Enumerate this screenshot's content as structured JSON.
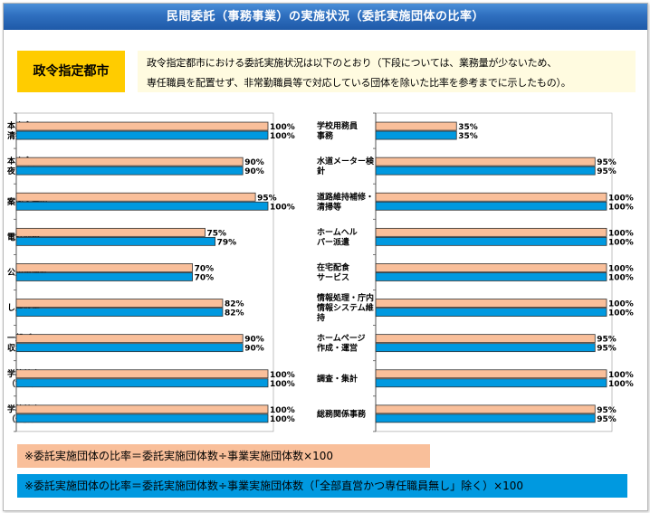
{
  "header": {
    "title": "民間委託（事務事業）の実施状況（委託実施団体の比率）"
  },
  "badge": {
    "label": "政令指定都市"
  },
  "description": {
    "line1": "政令指定都市における委託実施状況は以下のとおり（下段については、業務量が少ないため、",
    "line2": "専任職員を配置せず、非常勤職員等で対応している団体を除いた比率を参考までに示したもの）。"
  },
  "notes": {
    "note1": "※委託実施団体の比率＝委託実施団体数÷事業実施団体数×100",
    "note2": "※委託実施団体の比率＝委託実施団体数÷事業実施団体数（「全部直営かつ専任職員無し」除く）×100"
  },
  "colors": {
    "series1": "#f9bf9a",
    "series2": "#0099e0",
    "border": "#333333"
  },
  "chart_data": [
    {
      "type": "bar",
      "orientation": "horizontal",
      "xlim": [
        0,
        100
      ],
      "categories": [
        [
          "本庁舎の",
          "清掃"
        ],
        [
          "本庁舎の",
          "夜間警備"
        ],
        [
          "案内・受付"
        ],
        [
          "電話交換"
        ],
        [
          "公用車運転"
        ],
        [
          "し尿収集"
        ],
        [
          "一般ごみ",
          "収集"
        ],
        [
          "学校給食",
          "（調理）"
        ],
        [
          "学校給食",
          "（運搬）"
        ]
      ],
      "series": [
        {
          "values": [
            100,
            90,
            95,
            75,
            70,
            82,
            90,
            100,
            100
          ]
        },
        {
          "values": [
            100,
            90,
            100,
            79,
            70,
            82,
            90,
            100,
            100
          ]
        }
      ]
    },
    {
      "type": "bar",
      "orientation": "horizontal",
      "xlim": [
        0,
        100
      ],
      "categories": [
        [
          "学校用務員",
          "事務"
        ],
        [
          "水道メーター検",
          "針"
        ],
        [
          "道路維持補修・",
          "清掃等"
        ],
        [
          "ホームヘル",
          "パー派遣"
        ],
        [
          "在宅配食",
          "サービス"
        ],
        [
          "情報処理・庁内",
          "情報システム維",
          "持"
        ],
        [
          "ホームページ",
          "作成・運営"
        ],
        [
          "調査・集計"
        ],
        [
          "総務関係事務"
        ]
      ],
      "series": [
        {
          "values": [
            35,
            95,
            100,
            100,
            100,
            100,
            95,
            100,
            95
          ]
        },
        {
          "values": [
            35,
            95,
            100,
            100,
            100,
            100,
            95,
            100,
            95
          ]
        }
      ]
    }
  ]
}
